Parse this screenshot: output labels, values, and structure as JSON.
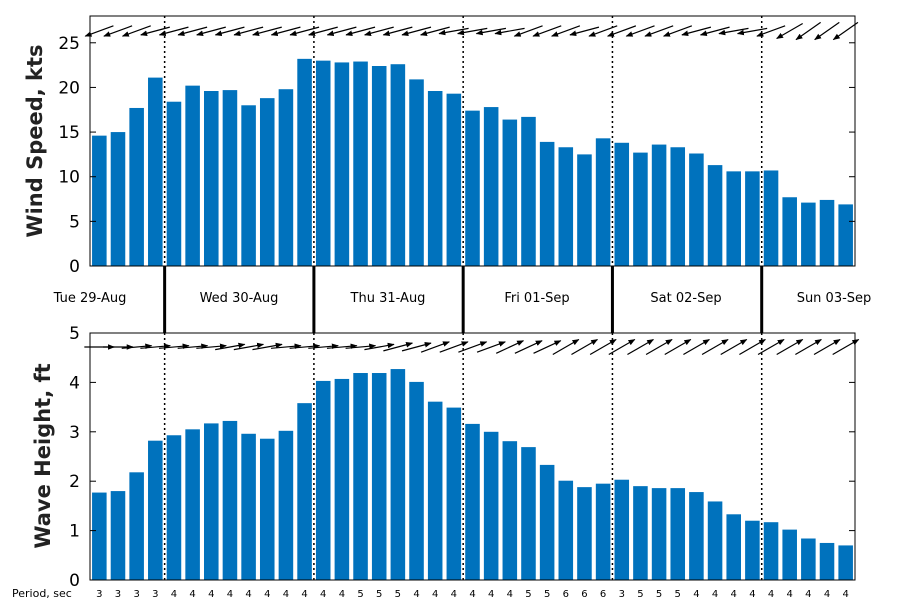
{
  "chart_data": [
    {
      "type": "bar",
      "ylabel": "Wind Speed, kts",
      "ylim": [
        0,
        28
      ],
      "yticks": [
        0,
        5,
        10,
        15,
        20,
        25
      ],
      "bar_color": "#0072bd",
      "values": [
        14.6,
        15.0,
        17.7,
        21.1,
        18.4,
        20.2,
        19.6,
        19.7,
        18.0,
        18.8,
        19.8,
        23.2,
        23.0,
        22.8,
        22.9,
        22.4,
        22.6,
        20.9,
        19.6,
        19.3,
        17.4,
        17.8,
        16.4,
        16.7,
        13.9,
        13.3,
        12.5,
        14.3,
        13.8,
        12.7,
        13.6,
        13.3,
        12.6,
        11.3,
        10.6,
        10.6,
        10.7,
        7.7,
        7.1,
        7.4,
        6.9
      ],
      "direction_arrows_deg": [
        200,
        200,
        200,
        195,
        195,
        195,
        195,
        195,
        195,
        195,
        195,
        195,
        195,
        195,
        195,
        195,
        195,
        195,
        195,
        190,
        190,
        190,
        190,
        200,
        200,
        200,
        195,
        200,
        200,
        200,
        200,
        200,
        195,
        195,
        190,
        190,
        200,
        210,
        215,
        215,
        215
      ]
    },
    {
      "type": "bar",
      "ylabel": "Wave Height, ft",
      "ylim": [
        0,
        5
      ],
      "yticks": [
        0,
        1,
        2,
        3,
        4,
        5
      ],
      "bar_color": "#0072bd",
      "values": [
        1.77,
        1.8,
        2.18,
        2.82,
        2.93,
        3.05,
        3.17,
        3.22,
        2.96,
        2.86,
        3.02,
        3.58,
        4.03,
        4.07,
        4.19,
        4.19,
        4.27,
        4.01,
        3.61,
        3.49,
        3.16,
        3.0,
        2.81,
        2.69,
        2.33,
        2.01,
        1.88,
        1.95,
        2.03,
        1.9,
        1.86,
        1.86,
        1.78,
        1.59,
        1.33,
        1.2,
        1.17,
        1.02,
        0.84,
        0.75,
        0.7
      ],
      "direction_arrows_deg": [
        0,
        0,
        5,
        5,
        5,
        5,
        5,
        10,
        10,
        10,
        5,
        5,
        5,
        5,
        5,
        10,
        15,
        15,
        20,
        20,
        20,
        20,
        25,
        25,
        25,
        30,
        30,
        30,
        30,
        30,
        30,
        30,
        30,
        30,
        30,
        30,
        30,
        30,
        30,
        30,
        30
      ],
      "period_label": "Period, sec",
      "period_values": [
        3,
        3,
        3,
        3,
        4,
        4,
        4,
        4,
        4,
        4,
        4,
        4,
        4,
        4,
        5,
        5,
        5,
        4,
        4,
        4,
        4,
        4,
        4,
        5,
        5,
        6,
        6,
        6,
        3,
        5,
        5,
        5,
        4,
        4,
        4,
        4,
        4,
        4,
        4,
        4,
        4
      ]
    }
  ],
  "day_labels": [
    "Tue 29-Aug",
    "Wed 30-Aug",
    "Thu 31-Aug",
    "Fri 01-Sep",
    "Sat 02-Sep",
    "Sun 03-Sep"
  ]
}
